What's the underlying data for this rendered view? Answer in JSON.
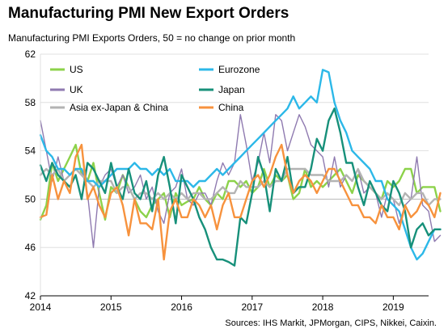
{
  "title": "Manufacturing PMI New Export Orders",
  "subtitle": "Manufacturing PMI Exports Orders, 50 = no change on prior month",
  "source": "Sources: IHS Markit, JPMorgan, CIPS, Nikkei, Caixin.",
  "chart_data": {
    "type": "line",
    "ylim": [
      42,
      62
    ],
    "yticks": [
      42,
      46,
      50,
      54,
      58,
      62
    ],
    "xlim": [
      2014.0,
      2019.5
    ],
    "xticks": [
      2014,
      2015,
      2016,
      2017,
      2018,
      2019
    ],
    "xtick_labels": [
      "2014",
      "2015",
      "2016",
      "2017",
      "2018",
      "2019"
    ],
    "grid": true,
    "reference_line": 50,
    "legend_placement": "top, two columns",
    "x_start": "2014-01",
    "series": [
      {
        "name": "US",
        "color": "#8cd24a",
        "width": 2.4,
        "values": [
          48.3,
          49.5,
          53.0,
          51.5,
          52.5,
          53.5,
          54.5,
          52.0,
          51.5,
          53.0,
          50.5,
          48.3,
          51.0,
          50.5,
          52.0,
          51.0,
          50.0,
          49.0,
          48.5,
          49.5,
          50.0,
          50.5,
          48.5,
          50.5,
          49.5,
          49.8,
          50.0,
          51.0,
          50.0,
          49.5,
          50.5,
          50.0,
          51.5,
          51.5,
          51.0,
          51.5,
          50.5,
          51.0,
          52.5,
          51.0,
          52.0,
          51.5,
          52.0,
          50.0,
          50.5,
          52.5,
          51.0,
          51.5,
          51.0,
          51.5,
          52.0,
          52.5,
          51.5,
          50.5,
          52.0,
          51.5,
          51.0,
          50.5,
          50.0,
          51.5,
          51.0,
          51.5,
          52.5,
          52.5,
          50.5,
          51.0,
          51.0,
          51.0,
          49.0
        ]
      },
      {
        "name": "UK",
        "color": "#8f7ab0",
        "width": 1.4,
        "values": [
          56.5,
          54.0,
          51.5,
          53.5,
          51.5,
          52.0,
          52.5,
          52.5,
          50.5,
          46.0,
          51.0,
          52.0,
          52.5,
          51.0,
          52.0,
          50.5,
          51.0,
          52.0,
          50.0,
          51.0,
          49.0,
          48.0,
          50.5,
          51.0,
          52.5,
          50.0,
          49.5,
          50.5,
          50.5,
          49.5,
          51.5,
          53.0,
          52.0,
          53.0,
          57.0,
          54.5,
          51.5,
          53.0,
          55.5,
          53.0,
          57.0,
          56.5,
          54.0,
          55.5,
          57.0,
          56.0,
          54.5,
          54.0,
          53.5,
          51.0,
          53.5,
          51.0,
          52.0,
          51.5,
          52.5,
          50.5,
          51.0,
          50.5,
          48.5,
          50.5,
          50.0,
          48.0,
          49.5,
          50.0,
          53.5,
          49.5,
          49.0,
          46.5,
          47.0
        ]
      },
      {
        "name": "Asia ex-Japan & China",
        "color": "#b3b3b3",
        "width": 2.4,
        "values": [
          52.0,
          52.5,
          52.0,
          52.5,
          51.5,
          52.0,
          52.5,
          52.0,
          51.5,
          51.0,
          51.5,
          51.5,
          51.5,
          50.5,
          51.0,
          51.0,
          50.0,
          50.5,
          50.5,
          50.0,
          50.5,
          50.0,
          50.5,
          50.0,
          50.5,
          50.0,
          50.5,
          50.5,
          50.0,
          50.0,
          50.5,
          51.0,
          50.5,
          50.5,
          51.5,
          51.0,
          51.0,
          51.0,
          51.5,
          51.0,
          51.5,
          51.5,
          52.5,
          52.5,
          52.5,
          52.5,
          52.0,
          52.0,
          52.0,
          51.5,
          51.5,
          51.5,
          52.0,
          51.5,
          52.5,
          51.5,
          51.0,
          50.5,
          50.0,
          50.5,
          50.0,
          49.5,
          50.5,
          50.0,
          50.5,
          50.5,
          49.5,
          50.0,
          50.0
        ]
      },
      {
        "name": "Eurozone",
        "color": "#2cb8e8",
        "width": 2.4,
        "values": [
          55.3,
          54.0,
          53.5,
          52.5,
          52.5,
          52.0,
          52.5,
          52.5,
          51.5,
          51.5,
          51.0,
          51.5,
          52.0,
          52.5,
          52.5,
          52.5,
          53.0,
          52.5,
          52.5,
          52.0,
          52.5,
          52.0,
          52.5,
          51.5,
          51.5,
          51.5,
          51.0,
          51.5,
          51.5,
          52.0,
          52.5,
          52.0,
          52.5,
          53.0,
          53.5,
          54.0,
          54.5,
          55.0,
          55.5,
          56.0,
          56.5,
          57.0,
          57.5,
          58.5,
          57.5,
          58.0,
          58.5,
          58.0,
          60.7,
          60.5,
          58.0,
          56.5,
          55.5,
          54.0,
          53.5,
          53.0,
          52.5,
          51.5,
          51.5,
          50.0,
          49.5,
          49.0,
          47.5,
          46.0,
          45.0,
          45.5,
          46.5,
          47.5,
          47.5
        ]
      },
      {
        "name": "Japan",
        "color": "#17907a",
        "width": 2.4,
        "values": [
          52.8,
          51.5,
          53.0,
          52.0,
          51.5,
          51.0,
          52.0,
          50.0,
          53.0,
          52.5,
          51.5,
          50.5,
          53.0,
          51.0,
          50.0,
          52.5,
          50.5,
          50.0,
          51.5,
          49.0,
          52.0,
          53.5,
          51.0,
          48.0,
          52.0,
          51.0,
          50.0,
          48.5,
          47.5,
          46.0,
          45.0,
          45.0,
          44.8,
          44.5,
          48.5,
          48.0,
          50.5,
          53.5,
          52.0,
          49.0,
          52.5,
          51.5,
          53.5,
          50.5,
          51.0,
          51.0,
          52.5,
          55.0,
          54.0,
          56.5,
          57.5,
          55.5,
          53.0,
          53.0,
          51.0,
          49.5,
          51.5,
          50.5,
          49.5,
          49.0,
          51.5,
          50.5,
          49.0,
          46.0,
          47.5,
          48.0,
          47.0,
          47.5,
          47.5
        ]
      },
      {
        "name": "China",
        "color": "#f7923d",
        "width": 2.4,
        "values": [
          48.5,
          48.7,
          52.0,
          50.0,
          51.5,
          50.5,
          53.5,
          54.5,
          50.0,
          51.0,
          49.5,
          48.5,
          50.5,
          51.0,
          49.5,
          47.0,
          50.0,
          48.0,
          48.0,
          47.5,
          50.0,
          45.0,
          49.0,
          50.0,
          48.5,
          48.5,
          50.0,
          49.5,
          48.5,
          49.5,
          47.5,
          49.5,
          50.5,
          48.5,
          48.5,
          50.0,
          51.5,
          52.0,
          51.0,
          52.0,
          53.5,
          54.5,
          52.0,
          50.5,
          51.5,
          52.0,
          51.5,
          50.5,
          51.5,
          52.5,
          52.5,
          51.5,
          50.5,
          49.5,
          49.5,
          48.5,
          48.5,
          48.0,
          49.5,
          48.5,
          48.5,
          47.5,
          49.5,
          48.5,
          49.0,
          50.0,
          49.5,
          48.5,
          50.5
        ]
      }
    ],
    "legend": [
      {
        "series": "US",
        "column": 0,
        "row": 0
      },
      {
        "series": "Eurozone",
        "column": 1,
        "row": 0
      },
      {
        "series": "UK",
        "column": 0,
        "row": 1
      },
      {
        "series": "Japan",
        "column": 1,
        "row": 1
      },
      {
        "series": "Asia ex-Japan & China",
        "column": 0,
        "row": 2
      },
      {
        "series": "China",
        "column": 1,
        "row": 2
      }
    ]
  }
}
